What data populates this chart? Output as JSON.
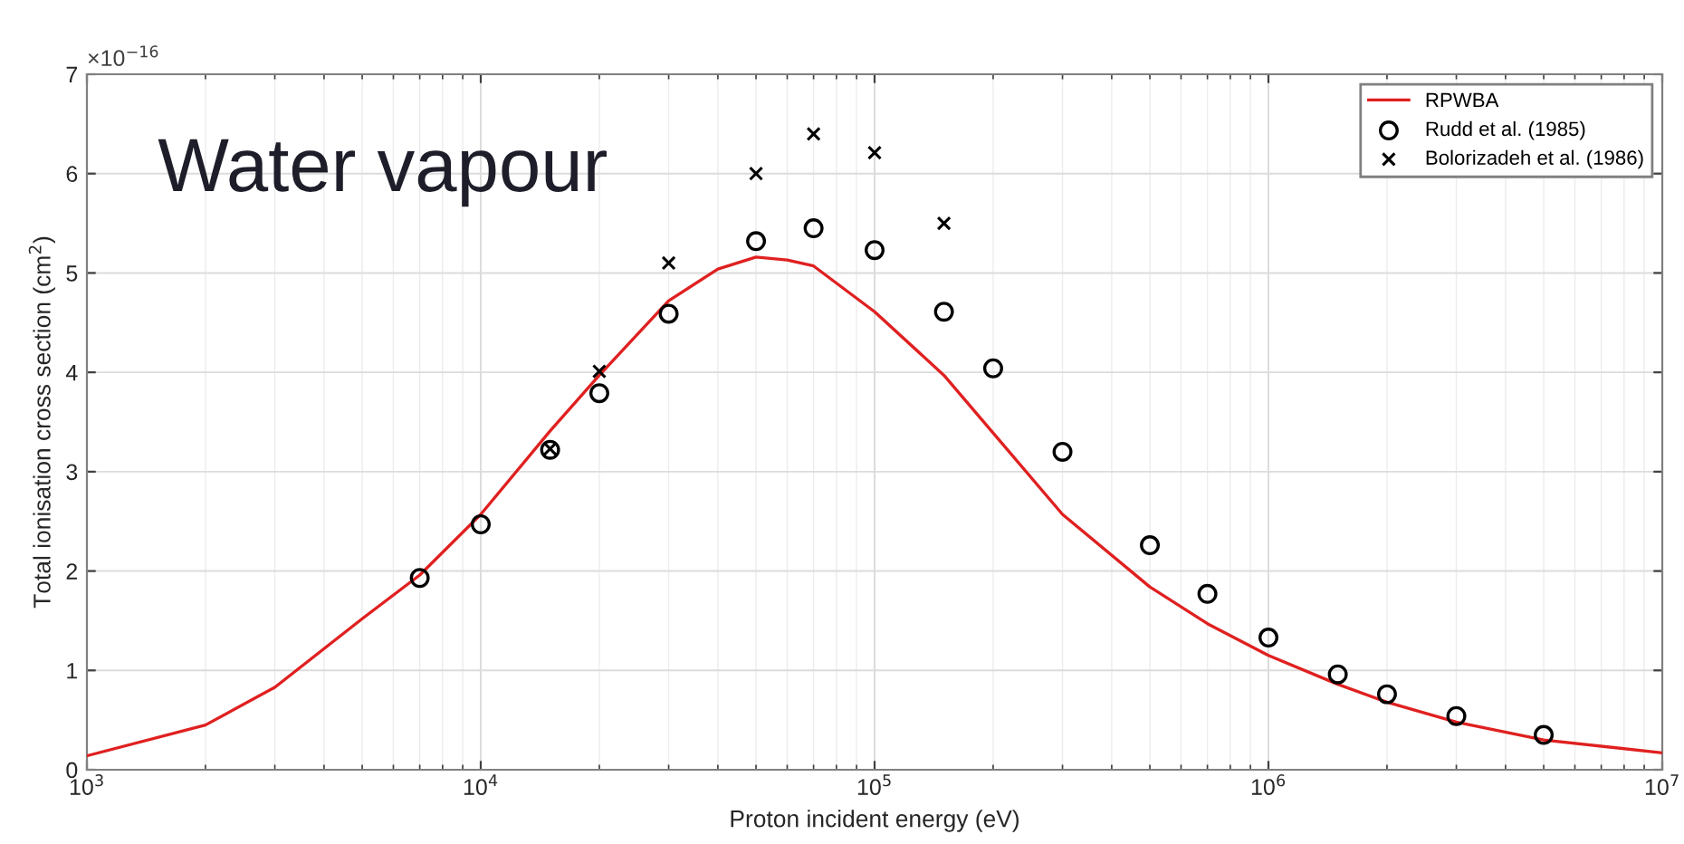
{
  "chart_data": {
    "type": "line",
    "xlabel": "Proton incident energy (eV)",
    "ylabel": "Total ionisation cross section (cm$^{2}$)",
    "log": "x",
    "grid": true,
    "legend": "top right",
    "xlim": [
      1000,
      10000000
    ],
    "ylim": [
      0,
      7
    ],
    "xticks": [
      {
        "value": 1000,
        "label": "10$^{3}$"
      },
      {
        "value": 10000,
        "label": "10$^{4}$"
      },
      {
        "value": 100000,
        "label": "10$^{5}$"
      },
      {
        "value": 1000000,
        "label": "10$^{6}$"
      },
      {
        "value": 10000000,
        "label": "10$^{7}$"
      }
    ],
    "yticks": [
      0,
      1,
      2,
      3,
      4,
      5,
      6,
      7
    ],
    "annotations": [
      "×10$^{−16}$",
      "Water vapour"
    ],
    "series": [
      {
        "name": "RPWBA",
        "color": "#e02020",
        "marker": "none",
        "line_style": "solid",
        "x": [
          1000,
          2000,
          3000,
          5000,
          7000,
          10000,
          15000,
          20000,
          30000,
          40000,
          50000,
          60000,
          70000,
          100000,
          150000,
          200000,
          300000,
          500000,
          700000,
          1000000,
          1500000,
          2000000,
          3000000,
          5000000,
          10000000
        ],
        "values": [
          0.14,
          0.45,
          0.83,
          1.52,
          1.96,
          2.57,
          3.41,
          3.97,
          4.72,
          5.04,
          5.16,
          5.13,
          5.07,
          4.61,
          3.97,
          3.39,
          2.57,
          1.84,
          1.47,
          1.15,
          0.86,
          0.68,
          0.48,
          0.3,
          0.17
        ]
      },
      {
        "name": "Rudd et al. (1985)",
        "type": "scatter",
        "color": "#000000",
        "marker": "circle",
        "x": [
          7000,
          10000,
          15000,
          20000,
          30000,
          50000,
          70000,
          100000,
          150000,
          200000,
          300000,
          500000,
          700000,
          1000000,
          1500000,
          2000000,
          3000000,
          5000000
        ],
        "values": [
          1.93,
          2.47,
          3.22,
          3.79,
          4.59,
          5.32,
          5.45,
          5.23,
          4.61,
          4.04,
          3.2,
          2.26,
          1.77,
          1.33,
          0.96,
          0.76,
          0.54,
          0.35
        ]
      },
      {
        "name": "Bolorizadeh et al. (1986)",
        "type": "scatter",
        "color": "#000000",
        "marker": "cross",
        "x": [
          15000,
          20000,
          30000,
          50000,
          70000,
          100000,
          150000
        ],
        "values": [
          3.23,
          4.01,
          5.1,
          6.0,
          6.4,
          6.21,
          5.5
        ]
      }
    ]
  }
}
